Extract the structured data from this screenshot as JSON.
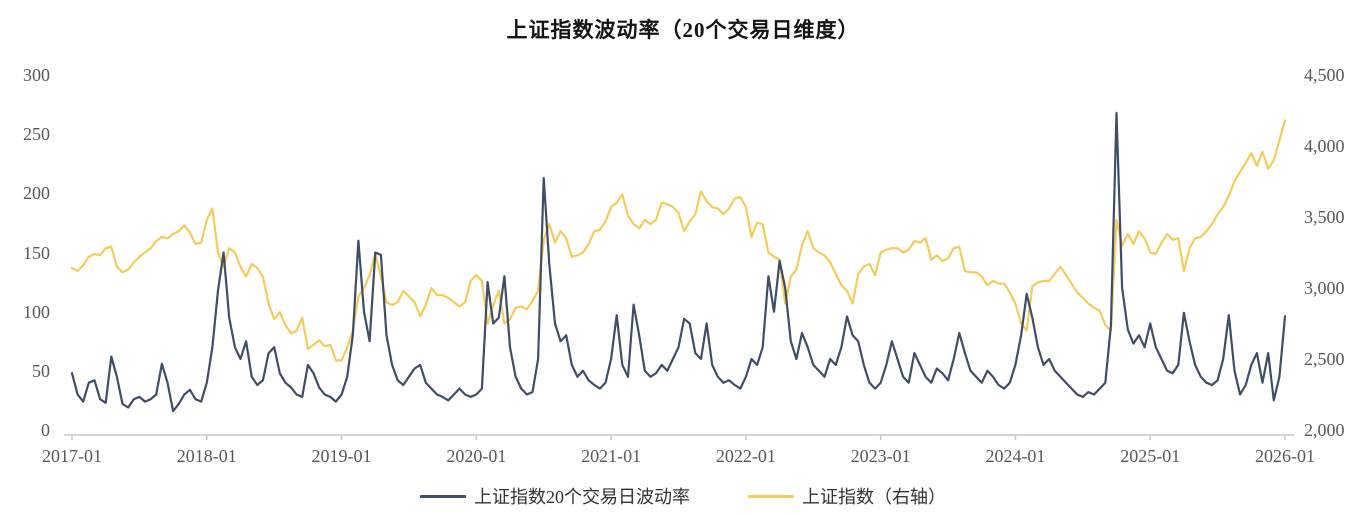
{
  "title": "上证指数波动率（20个交易日维度）",
  "legend": {
    "items": [
      {
        "label": "上证指数20个交易日波动率",
        "color": "#3F4E66"
      },
      {
        "label": "上证指数（右轴）",
        "color": "#F3CC5C"
      }
    ]
  },
  "chart_data": {
    "type": "line",
    "title": "上证指数波动率（20个交易日维度）",
    "grid": "off",
    "legend_position": "bottom-center",
    "sampling_note": "two samples per month; x = 2017 + index / 24, from 2017-01 to 2026-01",
    "x_axis": {
      "tick_labels": [
        "2017-01",
        "2018-01",
        "2019-01",
        "2020-01",
        "2021-01",
        "2022-01",
        "2023-01",
        "2024-01",
        "2025-01",
        "2026-01"
      ],
      "tick_years": [
        2017,
        2018,
        2019,
        2020,
        2021,
        2022,
        2023,
        2024,
        2025,
        2026
      ],
      "range": [
        2017,
        2026
      ]
    },
    "left_axis": {
      "tick_labels": [
        "300",
        "250",
        "200",
        "150",
        "100",
        "50",
        "0"
      ],
      "tick_values": [
        300,
        250,
        200,
        150,
        100,
        50,
        0
      ],
      "range": [
        0,
        300
      ]
    },
    "right_axis": {
      "tick_labels": [
        "4,500",
        "4,000",
        "3,500",
        "3,000",
        "2,500",
        "2,000"
      ],
      "tick_values": [
        4500,
        4000,
        3500,
        3000,
        2500,
        2000
      ],
      "range": [
        2000,
        4500
      ]
    },
    "series": [
      {
        "name": "上证指数20个交易日波动率",
        "axis": "left",
        "color": "#3F4E66",
        "values": [
          48,
          30,
          24,
          40,
          42,
          26,
          23,
          62,
          45,
          22,
          19,
          26,
          28,
          24,
          26,
          30,
          56,
          40,
          16,
          22,
          30,
          34,
          26,
          24,
          40,
          70,
          118,
          150,
          95,
          70,
          60,
          75,
          45,
          38,
          42,
          65,
          70,
          48,
          40,
          36,
          30,
          28,
          55,
          48,
          36,
          30,
          28,
          24,
          30,
          45,
          80,
          160,
          100,
          75,
          150,
          148,
          80,
          55,
          42,
          38,
          45,
          52,
          55,
          40,
          35,
          30,
          28,
          25,
          30,
          35,
          30,
          28,
          30,
          35,
          125,
          90,
          95,
          130,
          70,
          45,
          35,
          30,
          32,
          60,
          213,
          140,
          90,
          75,
          80,
          55,
          45,
          50,
          42,
          38,
          35,
          40,
          60,
          97,
          55,
          45,
          106,
          80,
          50,
          45,
          48,
          55,
          50,
          60,
          70,
          94,
          90,
          65,
          60,
          90,
          55,
          45,
          40,
          42,
          38,
          35,
          45,
          60,
          55,
          70,
          130,
          100,
          143,
          120,
          75,
          60,
          82,
          70,
          55,
          50,
          45,
          60,
          55,
          70,
          96,
          80,
          75,
          55,
          40,
          35,
          40,
          55,
          75,
          60,
          45,
          40,
          65,
          55,
          45,
          40,
          52,
          48,
          42,
          60,
          82,
          65,
          50,
          45,
          40,
          50,
          45,
          38,
          35,
          40,
          55,
          80,
          115,
          95,
          70,
          55,
          60,
          50,
          45,
          40,
          35,
          30,
          28,
          32,
          30,
          35,
          40,
          88,
          268,
          120,
          85,
          73,
          80,
          70,
          90,
          70,
          60,
          50,
          48,
          55,
          99,
          75,
          55,
          45,
          40,
          38,
          42,
          60,
          97,
          50,
          30,
          38,
          55,
          65,
          40,
          65,
          25,
          45,
          96
        ]
      },
      {
        "name": "上证指数（右轴）",
        "axis": "right",
        "color": "#F3CC5C",
        "values": [
          3140,
          3120,
          3160,
          3220,
          3240,
          3230,
          3280,
          3290,
          3150,
          3110,
          3130,
          3180,
          3220,
          3250,
          3280,
          3330,
          3360,
          3350,
          3380,
          3400,
          3440,
          3390,
          3310,
          3320,
          3480,
          3560,
          3250,
          3150,
          3280,
          3250,
          3150,
          3080,
          3170,
          3140,
          3080,
          2890,
          2780,
          2830,
          2740,
          2680,
          2700,
          2790,
          2570,
          2600,
          2630,
          2590,
          2600,
          2490,
          2490,
          2580,
          2700,
          2940,
          3000,
          3090,
          3240,
          3080,
          2900,
          2880,
          2900,
          2980,
          2940,
          2900,
          2800,
          2880,
          3000,
          2950,
          2950,
          2930,
          2900,
          2870,
          2900,
          3050,
          3090,
          3050,
          2750,
          2880,
          2980,
          2750,
          2780,
          2860,
          2870,
          2850,
          2910,
          2980,
          3340,
          3450,
          3320,
          3400,
          3350,
          3220,
          3230,
          3250,
          3310,
          3400,
          3410,
          3470,
          3570,
          3600,
          3660,
          3510,
          3450,
          3420,
          3480,
          3450,
          3480,
          3600,
          3590,
          3570,
          3530,
          3400,
          3470,
          3520,
          3680,
          3610,
          3570,
          3560,
          3520,
          3560,
          3630,
          3640,
          3570,
          3360,
          3460,
          3450,
          3250,
          3220,
          3200,
          2890,
          3080,
          3130,
          3300,
          3400,
          3280,
          3250,
          3230,
          3180,
          3100,
          3020,
          2980,
          2890,
          3100,
          3150,
          3170,
          3090,
          3250,
          3270,
          3280,
          3280,
          3250,
          3270,
          3330,
          3320,
          3350,
          3200,
          3230,
          3190,
          3210,
          3280,
          3290,
          3120,
          3110,
          3110,
          3080,
          3020,
          3050,
          3030,
          3030,
          2970,
          2890,
          2750,
          2700,
          3010,
          3040,
          3050,
          3050,
          3100,
          3150,
          3090,
          3030,
          2970,
          2930,
          2890,
          2860,
          2840,
          2740,
          2700,
          3480,
          3300,
          3380,
          3310,
          3400,
          3350,
          3250,
          3240,
          3320,
          3380,
          3340,
          3350,
          3120,
          3280,
          3350,
          3360,
          3400,
          3450,
          3520,
          3570,
          3650,
          3750,
          3820,
          3880,
          3950,
          3860,
          3960,
          3840,
          3900,
          4040,
          4180
        ]
      }
    ],
    "axis_line_color": "#C8C8C8"
  }
}
